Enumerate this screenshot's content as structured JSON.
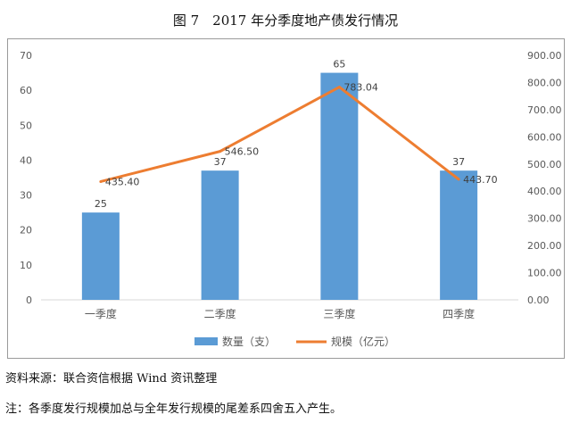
{
  "figure_title": "图 7　2017 年分季度地产债发行情况",
  "source_text": "资料来源：联合资信根据 Wind 资讯整理",
  "note_text": "注：各季度发行规模加总与全年发行规模的尾差系四舍五入产生。",
  "colors": {
    "bar": "#5b9bd5",
    "line": "#ed7d31",
    "axis_text": "#595959",
    "grid": "#d9d9d9"
  },
  "chart_data": {
    "type": "bar",
    "title": "",
    "categories": [
      "一季度",
      "二季度",
      "三季度",
      "四季度"
    ],
    "series": [
      {
        "name": "数量（支）",
        "type": "bar",
        "axis": "left",
        "values": [
          25,
          37,
          65,
          37
        ],
        "labels": [
          "25",
          "37",
          "65",
          "37"
        ]
      },
      {
        "name": "规模（亿元）",
        "type": "line",
        "axis": "right",
        "values": [
          435.4,
          546.5,
          783.04,
          443.7
        ],
        "labels": [
          "435.40",
          "546.50",
          "783.04",
          "443.70"
        ]
      }
    ],
    "ylim": [
      0,
      70
    ],
    "y_ticks": [
      "0",
      "10",
      "20",
      "30",
      "40",
      "50",
      "60",
      "70"
    ],
    "y2lim": [
      0,
      900
    ],
    "y2_ticks": [
      "0.00",
      "100.00",
      "200.00",
      "300.00",
      "400.00",
      "500.00",
      "600.00",
      "700.00",
      "800.00",
      "900.00"
    ],
    "grid": false,
    "legend_position": "bottom"
  }
}
